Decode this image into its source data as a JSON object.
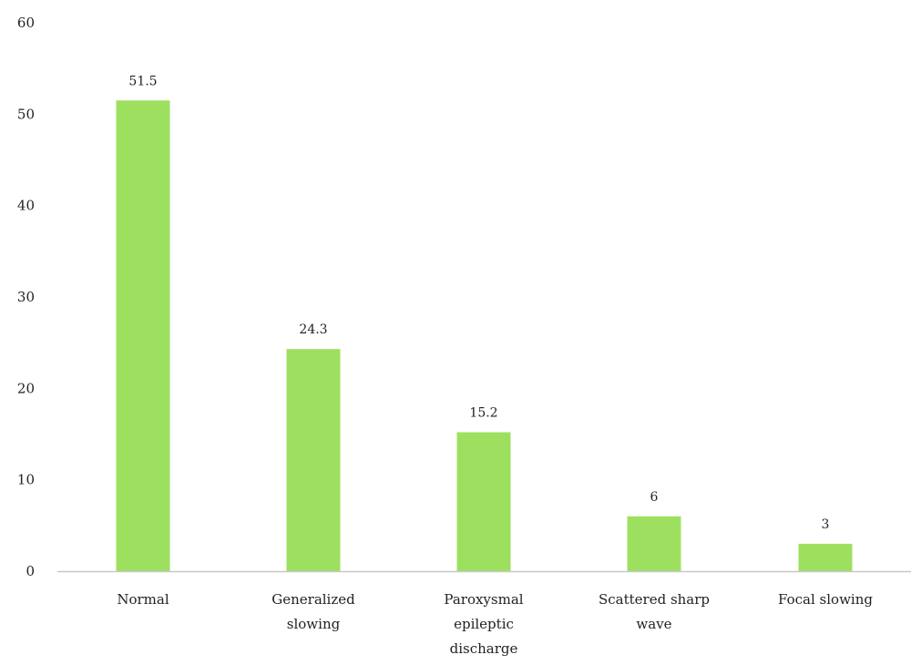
{
  "chart_data": {
    "type": "bar",
    "categories": [
      [
        "Normal"
      ],
      [
        "Generalized",
        "slowing"
      ],
      [
        "Paroxysmal",
        "epileptic",
        "discharge"
      ],
      [
        "Scattered sharp",
        "wave"
      ],
      [
        "Focal slowing"
      ]
    ],
    "values": [
      51.5,
      24.3,
      15.2,
      6,
      3
    ],
    "data_labels": [
      "51.5",
      "24.3",
      "15.2",
      "6",
      "3"
    ],
    "yticks": [
      "0",
      "10",
      "20",
      "30",
      "40",
      "50",
      "60"
    ],
    "ylim": [
      0,
      60
    ],
    "grid": false,
    "legend": "none",
    "bar_color": "#9de05f",
    "axis_color": "#c8c8c8",
    "title": "",
    "xlabel": "",
    "ylabel": ""
  }
}
